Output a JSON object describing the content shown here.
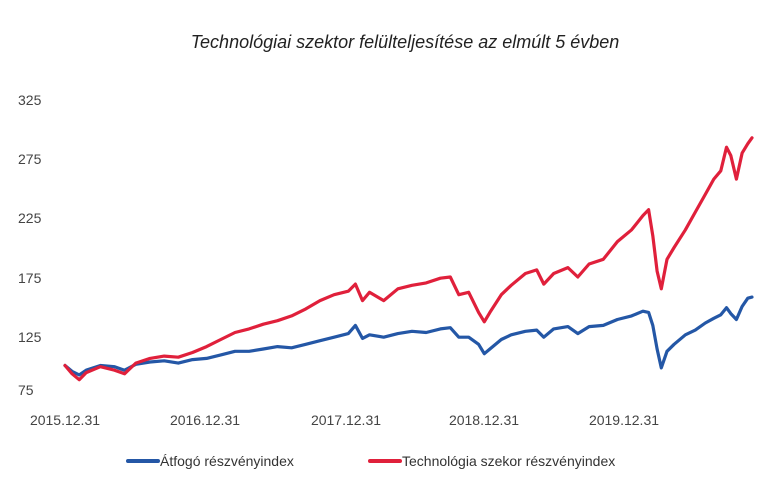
{
  "chart_data": {
    "type": "line",
    "title": "Technológiai szektor felülteljesítése az elmúlt 5 évben",
    "xlabel": "",
    "ylabel": "",
    "ylim": [
      75,
      325
    ],
    "yticks": [
      "75",
      "125",
      "175",
      "225",
      "275",
      "325"
    ],
    "xticks": [
      "2015.12.31",
      "2016.12.31",
      "2017.12.31",
      "2018.12.31",
      "2019.12.31"
    ],
    "xlim": [
      2016.0,
      2020.85
    ],
    "grid": false,
    "legend_position": "bottom",
    "series": [
      {
        "name": "Átfogó részvényindex",
        "color": "#2457a6",
        "points": [
          [
            2016.0,
            100
          ],
          [
            2016.05,
            95
          ],
          [
            2016.1,
            92
          ],
          [
            2016.15,
            96
          ],
          [
            2016.25,
            100
          ],
          [
            2016.35,
            99
          ],
          [
            2016.42,
            96
          ],
          [
            2016.5,
            101
          ],
          [
            2016.6,
            103
          ],
          [
            2016.7,
            104
          ],
          [
            2016.8,
            102
          ],
          [
            2016.9,
            105
          ],
          [
            2017.0,
            106
          ],
          [
            2017.1,
            109
          ],
          [
            2017.2,
            112
          ],
          [
            2017.3,
            112
          ],
          [
            2017.4,
            114
          ],
          [
            2017.5,
            116
          ],
          [
            2017.6,
            115
          ],
          [
            2017.7,
            118
          ],
          [
            2017.8,
            121
          ],
          [
            2017.9,
            124
          ],
          [
            2018.0,
            127
          ],
          [
            2018.05,
            134
          ],
          [
            2018.1,
            123
          ],
          [
            2018.15,
            126
          ],
          [
            2018.25,
            124
          ],
          [
            2018.35,
            127
          ],
          [
            2018.45,
            129
          ],
          [
            2018.55,
            128
          ],
          [
            2018.65,
            131
          ],
          [
            2018.72,
            132
          ],
          [
            2018.78,
            124
          ],
          [
            2018.85,
            124
          ],
          [
            2018.92,
            118
          ],
          [
            2018.96,
            110
          ],
          [
            2019.0,
            114
          ],
          [
            2019.08,
            122
          ],
          [
            2019.15,
            126
          ],
          [
            2019.25,
            129
          ],
          [
            2019.33,
            130
          ],
          [
            2019.38,
            124
          ],
          [
            2019.45,
            131
          ],
          [
            2019.55,
            133
          ],
          [
            2019.62,
            127
          ],
          [
            2019.7,
            133
          ],
          [
            2019.8,
            134
          ],
          [
            2019.9,
            139
          ],
          [
            2020.0,
            142
          ],
          [
            2020.08,
            146
          ],
          [
            2020.12,
            145
          ],
          [
            2020.15,
            134
          ],
          [
            2020.18,
            114
          ],
          [
            2020.21,
            98
          ],
          [
            2020.25,
            112
          ],
          [
            2020.3,
            118
          ],
          [
            2020.38,
            126
          ],
          [
            2020.45,
            130
          ],
          [
            2020.52,
            136
          ],
          [
            2020.58,
            140
          ],
          [
            2020.63,
            143
          ],
          [
            2020.67,
            149
          ],
          [
            2020.7,
            144
          ],
          [
            2020.74,
            139
          ],
          [
            2020.78,
            150
          ],
          [
            2020.82,
            157
          ],
          [
            2020.85,
            158
          ]
        ]
      },
      {
        "name": "Technológia szekor részvényindex",
        "color": "#e0203b",
        "points": [
          [
            2016.0,
            100
          ],
          [
            2016.05,
            93
          ],
          [
            2016.1,
            88
          ],
          [
            2016.15,
            94
          ],
          [
            2016.25,
            99
          ],
          [
            2016.35,
            96
          ],
          [
            2016.42,
            93
          ],
          [
            2016.5,
            102
          ],
          [
            2016.6,
            106
          ],
          [
            2016.7,
            108
          ],
          [
            2016.8,
            107
          ],
          [
            2016.9,
            111
          ],
          [
            2017.0,
            116
          ],
          [
            2017.1,
            122
          ],
          [
            2017.2,
            128
          ],
          [
            2017.3,
            131
          ],
          [
            2017.4,
            135
          ],
          [
            2017.5,
            138
          ],
          [
            2017.6,
            142
          ],
          [
            2017.7,
            148
          ],
          [
            2017.8,
            155
          ],
          [
            2017.9,
            160
          ],
          [
            2018.0,
            163
          ],
          [
            2018.05,
            169
          ],
          [
            2018.1,
            155
          ],
          [
            2018.15,
            162
          ],
          [
            2018.25,
            155
          ],
          [
            2018.35,
            165
          ],
          [
            2018.45,
            168
          ],
          [
            2018.55,
            170
          ],
          [
            2018.65,
            174
          ],
          [
            2018.72,
            175
          ],
          [
            2018.78,
            160
          ],
          [
            2018.85,
            162
          ],
          [
            2018.92,
            145
          ],
          [
            2018.96,
            137
          ],
          [
            2019.0,
            145
          ],
          [
            2019.08,
            160
          ],
          [
            2019.15,
            168
          ],
          [
            2019.25,
            178
          ],
          [
            2019.33,
            181
          ],
          [
            2019.38,
            169
          ],
          [
            2019.45,
            178
          ],
          [
            2019.55,
            183
          ],
          [
            2019.62,
            175
          ],
          [
            2019.7,
            186
          ],
          [
            2019.8,
            190
          ],
          [
            2019.9,
            205
          ],
          [
            2020.0,
            215
          ],
          [
            2020.08,
            227
          ],
          [
            2020.12,
            232
          ],
          [
            2020.15,
            210
          ],
          [
            2020.18,
            180
          ],
          [
            2020.21,
            165
          ],
          [
            2020.25,
            190
          ],
          [
            2020.3,
            200
          ],
          [
            2020.38,
            215
          ],
          [
            2020.45,
            230
          ],
          [
            2020.52,
            245
          ],
          [
            2020.58,
            258
          ],
          [
            2020.63,
            265
          ],
          [
            2020.67,
            285
          ],
          [
            2020.7,
            278
          ],
          [
            2020.74,
            258
          ],
          [
            2020.78,
            280
          ],
          [
            2020.82,
            288
          ],
          [
            2020.85,
            293
          ]
        ]
      }
    ]
  }
}
